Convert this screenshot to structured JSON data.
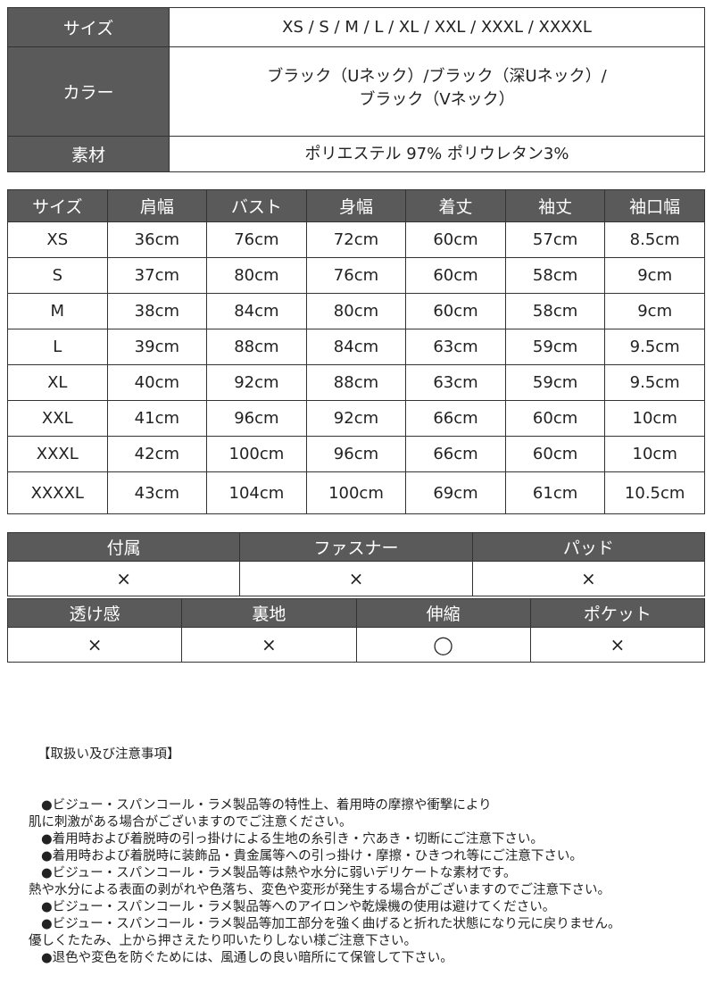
{
  "spec": {
    "rows": [
      {
        "label": "サイズ",
        "value": "XS / S / M / L / XL / XXL / XXXL / XXXXL"
      },
      {
        "label": "カラー",
        "value_lines": [
          "ブラック（Uネック）/ブラック（深Uネック）/",
          "ブラック（Vネック）"
        ]
      },
      {
        "label": "素材",
        "value": "ポリエステル 97% ポリウレタン3%"
      }
    ]
  },
  "size_chart": {
    "headers": [
      "サイズ",
      "肩幅",
      "バスト",
      "身幅",
      "着丈",
      "袖丈",
      "袖口幅"
    ],
    "rows": [
      [
        "XS",
        "36cm",
        "76cm",
        "72cm",
        "60cm",
        "57cm",
        "8.5cm"
      ],
      [
        "S",
        "37cm",
        "80cm",
        "76cm",
        "60cm",
        "58cm",
        "9cm"
      ],
      [
        "M",
        "38cm",
        "84cm",
        "80cm",
        "60cm",
        "58cm",
        "9cm"
      ],
      [
        "L",
        "39cm",
        "88cm",
        "84cm",
        "63cm",
        "59cm",
        "9.5cm"
      ],
      [
        "XL",
        "40cm",
        "92cm",
        "88cm",
        "63cm",
        "59cm",
        "9.5cm"
      ],
      [
        "XXL",
        "41cm",
        "96cm",
        "92cm",
        "66cm",
        "60cm",
        "10cm"
      ],
      [
        "XXXL",
        "42cm",
        "100cm",
        "96cm",
        "66cm",
        "60cm",
        "10cm"
      ],
      [
        "XXXXL",
        "43cm",
        "104cm",
        "100cm",
        "69cm",
        "61cm",
        "10.5cm"
      ]
    ]
  },
  "features1": {
    "headers": [
      "付属",
      "ファスナー",
      "パッド"
    ],
    "values": [
      "×",
      "×",
      "×"
    ]
  },
  "features2": {
    "headers": [
      "透け感",
      "裏地",
      "伸縮",
      "ポケット"
    ],
    "values": [
      "×",
      "×",
      "◯",
      "×"
    ]
  },
  "notes": {
    "title": "【取扱い及び注意事項】",
    "lines": [
      "●ビジュー・スパンコール・ラメ製品等の特性上、着用時の摩擦や衝撃により",
      "肌に刺激がある場合がございますのでご注意ください。",
      "●着用時および着脱時の引っ掛けによる生地の糸引き・穴あき・切断にご注意下さい。",
      "●着用時および着脱時に装飾品・貴金属等への引っ掛け・摩擦・ひきつれ等にご注意下さい。",
      "●ビジュー・スパンコール・ラメ製品等は熱や水分に弱いデリケートな素材です。",
      "熱や水分による表面の剥がれや色落ち、変色や変形が発生する場合がございますのでご注意下さい。",
      "●ビジュー・スパンコール・ラメ製品等へのアイロンや乾燥機の使用は避けてください。",
      "●ビジュー・スパンコール・ラメ製品等加工部分を強く曲げると折れた状態になり元に戻りません。",
      "優しくたたみ、上から押さえたり叩いたりしない様ご注意下さい。",
      "●退色や変色を防ぐためには、風通しの良い暗所にて保管して下さい。"
    ]
  }
}
